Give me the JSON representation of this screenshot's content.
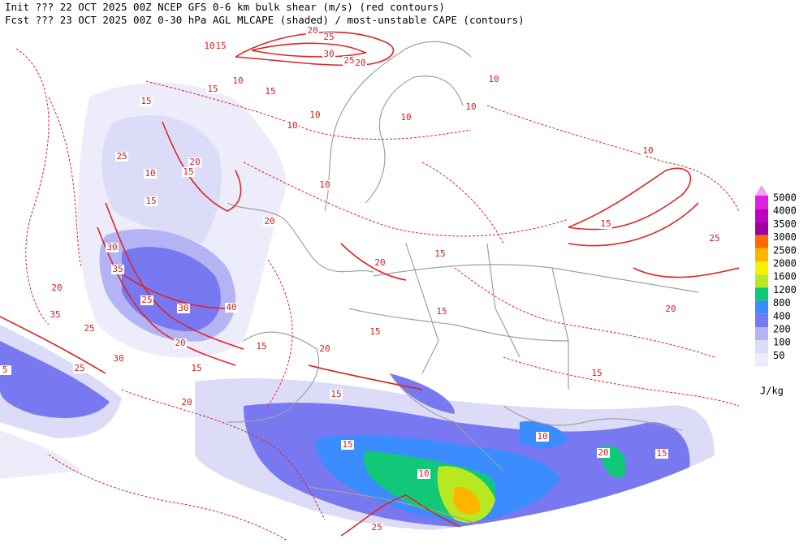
{
  "header": {
    "line1": "Init  ??? 22 OCT 2025 00Z  NCEP GFS 0-6 km bulk shear (m/s) (red contours)",
    "line2": "Fcst ??? 23 OCT 2025 00Z  0-30 hPa AGL MLCAPE (shaded) / most-unstable CAPE (contours)"
  },
  "legend": {
    "levels": [
      5000,
      4000,
      3500,
      3000,
      2500,
      2000,
      1600,
      1200,
      800,
      400,
      200,
      100,
      50
    ],
    "colors": [
      "#e020e0",
      "#c000c0",
      "#a000a0",
      "#ff6a00",
      "#ffb400",
      "#f8f000",
      "#b8e820",
      "#10c878",
      "#3a8cff",
      "#7878f0",
      "#b4b4f4",
      "#dcdcf8",
      "#ececfa"
    ],
    "overflow_color": "#f0a0f0",
    "unit": "J/kg"
  },
  "contour_labels": [
    "20",
    "25",
    "30",
    "25",
    "20",
    "10",
    "15",
    "10",
    "15",
    "10",
    "15",
    "10",
    "15",
    "10",
    "25",
    "20",
    "15",
    "10",
    "15",
    "20",
    "30",
    "35",
    "20",
    "25",
    "30",
    "40",
    "20",
    "35",
    "25",
    "30",
    "25",
    "15",
    "20",
    "15",
    "20",
    "15",
    "10",
    "10",
    "15",
    "15",
    "15",
    "20",
    "15",
    "25",
    "10",
    "15",
    "10",
    "20",
    "15",
    "25",
    "10",
    "15",
    "10",
    "20",
    "5"
  ]
}
